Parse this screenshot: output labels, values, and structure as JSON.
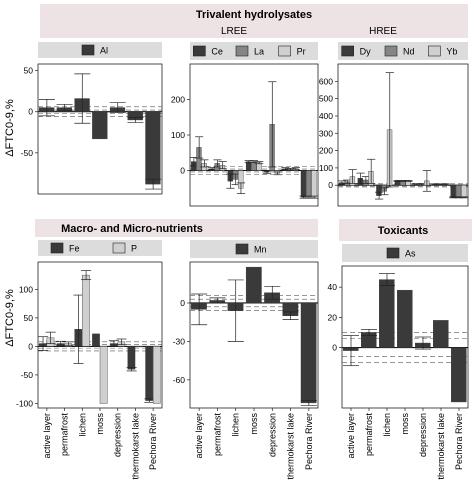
{
  "groups": {
    "trivalent": "Trivalent hydrolysates",
    "lree": "LREE",
    "hree": "HREE",
    "macro": "Macro- and Micro-nutrients",
    "toxicants": "Toxicants"
  },
  "y_axis_label": "ΔFTC0-9,%",
  "categories": [
    "active layer",
    "permafrost",
    "lichen",
    "moss",
    "depression",
    "thermokarst lake",
    "Pechora River"
  ],
  "colors": {
    "dark": "#3a3a3a",
    "mid": "#858585",
    "light": "#cfcfcf",
    "strip": "#dcdcdc",
    "group_bg": "#ede3e5"
  },
  "chart_data": [
    {
      "type": "bar",
      "panel": "Al",
      "categories": [
        "active layer",
        "permafrost",
        "lichen",
        "moss",
        "depression",
        "thermokarst lake",
        "Pechora River"
      ],
      "series": [
        {
          "name": "Al",
          "color": "#3a3a3a",
          "values": [
            5,
            5,
            16,
            -33,
            5,
            -10,
            -88
          ],
          "errors": [
            10,
            4,
            30,
            0,
            6,
            3,
            6
          ]
        }
      ],
      "yticks": [
        -50,
        0,
        50
      ],
      "ylim": [
        -100,
        58
      ],
      "ref_lines": [
        -6,
        6,
        -2,
        2
      ]
    },
    {
      "type": "bar",
      "panel": "LREE",
      "categories": [
        "active layer",
        "permafrost",
        "lichen",
        "moss",
        "depression",
        "thermokarst lake",
        "Pechora River"
      ],
      "series": [
        {
          "name": "Ce",
          "color": "#3a3a3a",
          "values": [
            25,
            5,
            -30,
            25,
            -5,
            5,
            -75
          ],
          "errors": [
            12,
            3,
            20,
            3,
            4,
            3,
            3
          ]
        },
        {
          "name": "La",
          "color": "#858585",
          "values": [
            65,
            20,
            -25,
            25,
            130,
            3,
            -75
          ],
          "errors": [
            30,
            10,
            15,
            3,
            120,
            3,
            3
          ]
        },
        {
          "name": "Pr",
          "color": "#cfcfcf",
          "values": [
            20,
            15,
            -50,
            22,
            -8,
            5,
            -75
          ],
          "errors": [
            10,
            10,
            15,
            3,
            4,
            3,
            3
          ]
        }
      ],
      "yticks": [
        0,
        100,
        200
      ],
      "ylim": [
        -100,
        300
      ],
      "ref_lines": [
        -12,
        12,
        -4,
        4
      ]
    },
    {
      "type": "bar",
      "panel": "HREE",
      "categories": [
        "active layer",
        "permafrost",
        "lichen",
        "moss",
        "depression",
        "thermokarst lake",
        "Pechora River"
      ],
      "series": [
        {
          "name": "Dy",
          "color": "#3a3a3a",
          "values": [
            15,
            40,
            -60,
            25,
            5,
            5,
            -70
          ],
          "errors": [
            10,
            30,
            20,
            3,
            4,
            3,
            3
          ]
        },
        {
          "name": "Nd",
          "color": "#858585",
          "values": [
            20,
            30,
            -35,
            25,
            5,
            5,
            -70
          ],
          "errors": [
            10,
            20,
            20,
            3,
            4,
            3,
            3
          ]
        },
        {
          "name": "Yb",
          "color": "#cfcfcf",
          "values": [
            50,
            80,
            320,
            25,
            25,
            5,
            -70
          ],
          "errors": [
            40,
            70,
            330,
            3,
            60,
            3,
            3
          ]
        }
      ],
      "yticks": [
        0,
        100,
        200,
        300,
        400,
        500,
        600
      ],
      "ylim": [
        -120,
        700
      ],
      "ref_lines": [
        -10,
        10,
        -4,
        4
      ]
    },
    {
      "type": "bar",
      "panel": "Macro- and Micro-nutrients",
      "categories": [
        "active layer",
        "permafrost",
        "lichen",
        "moss",
        "depression",
        "thermokarst lake",
        "Pechora River"
      ],
      "series": [
        {
          "name": "Fe",
          "color": "#3a3a3a",
          "values": [
            5,
            5,
            30,
            22,
            5,
            -40,
            -95
          ],
          "errors": [
            12,
            4,
            60,
            0,
            5,
            3,
            3
          ]
        },
        {
          "name": "P",
          "color": "#cfcfcf",
          "values": [
            15,
            5,
            125,
            -100,
            8,
            0,
            -100
          ],
          "errors": [
            10,
            3,
            8,
            0,
            5,
            0,
            0
          ]
        }
      ],
      "yticks": [
        -100,
        -50,
        0,
        50,
        100
      ],
      "ylim": [
        -108,
        148
      ],
      "ref_lines": [
        -8,
        8,
        -3,
        3
      ]
    },
    {
      "type": "bar",
      "panel": "Mn",
      "categories": [
        "active layer",
        "permafrost",
        "lichen",
        "moss",
        "depression",
        "thermokarst lake",
        "Pechora River"
      ],
      "series": [
        {
          "name": "Mn",
          "color": "#3a3a3a",
          "values": [
            -5,
            2,
            -6,
            28,
            8,
            -10,
            -78
          ],
          "errors": [
            12,
            2,
            24,
            0,
            5,
            3,
            2
          ]
        }
      ],
      "yticks": [
        -60,
        -30,
        0
      ],
      "ylim": [
        -82,
        32
      ],
      "ref_lines": [
        -6,
        6,
        -3,
        3
      ]
    },
    {
      "type": "bar",
      "panel": "As",
      "categories": [
        "active layer",
        "permafrost",
        "lichen",
        "moss",
        "depression",
        "thermokarst lake",
        "Pechora River"
      ],
      "series": [
        {
          "name": "As",
          "color": "#3a3a3a",
          "values": [
            -2,
            10,
            45,
            38,
            3,
            18,
            -36
          ],
          "errors": [
            10,
            2,
            4,
            0,
            4,
            0,
            0
          ]
        }
      ],
      "yticks": [
        0,
        20,
        40
      ],
      "ylim": [
        -40,
        54
      ],
      "ref_lines": [
        -10,
        10,
        -6,
        6
      ]
    }
  ]
}
